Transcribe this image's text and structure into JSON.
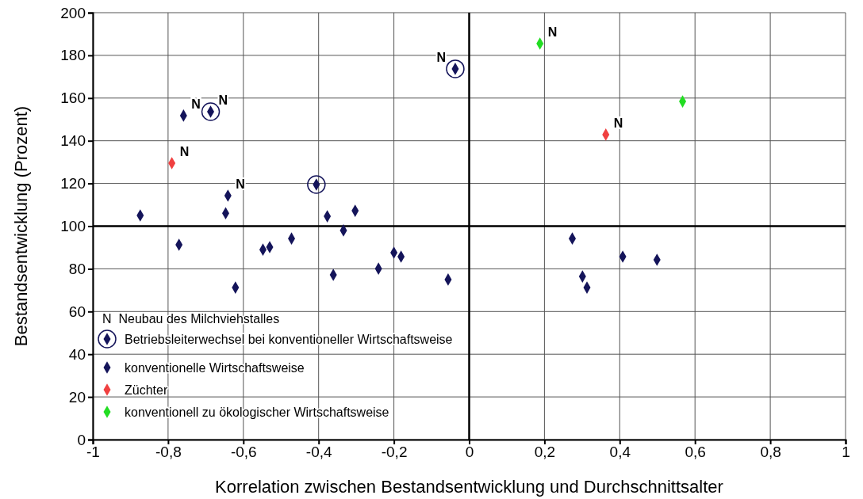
{
  "chart_data": {
    "type": "scatter",
    "xlabel": "Korrelation zwischen Bestandsentwicklung und Durchschnittsalter",
    "ylabel": "Bestandsentwicklung (Prozent)",
    "xlim": [
      -1,
      1
    ],
    "ylim": [
      0,
      200
    ],
    "xticks": [
      {
        "value": -1,
        "label": "-1"
      },
      {
        "value": -0.8,
        "label": "-0,8"
      },
      {
        "value": -0.6,
        "label": "-0,6"
      },
      {
        "value": -0.4,
        "label": "-0,4"
      },
      {
        "value": -0.2,
        "label": "-0,2"
      },
      {
        "value": 0,
        "label": "0"
      },
      {
        "value": 0.2,
        "label": "0,2"
      },
      {
        "value": 0.4,
        "label": "0,4"
      },
      {
        "value": 0.6,
        "label": "0,6"
      },
      {
        "value": 0.8,
        "label": "0,8"
      },
      {
        "value": 1,
        "label": "1"
      }
    ],
    "yticks": [
      0,
      20,
      40,
      60,
      80,
      100,
      120,
      140,
      160,
      180,
      200
    ],
    "grid": true,
    "legend": "bottom left",
    "marker": "diamond",
    "ref_lines": [
      {
        "axis": "x",
        "value": 0,
        "color": "#000000"
      },
      {
        "axis": "y",
        "value": 100,
        "color": "#000000"
      }
    ],
    "series": [
      {
        "name": "Betriebsleiterwechsel bei konventioneller Wirtschaftsweise",
        "color": "#14145a",
        "marker": "circle",
        "x": [
          -0.687,
          -0.406,
          -0.037
        ],
        "values": [
          153.6,
          119.5,
          173.7
        ]
      },
      {
        "name": "konventionelle Wirtschaftsweise",
        "color": "#14145a",
        "x": [
          -0.874,
          -0.759,
          -0.771,
          -0.641,
          -0.647,
          -0.621,
          -0.548,
          -0.53,
          -0.472,
          -0.377,
          -0.361,
          -0.334,
          -0.303,
          -0.241,
          -0.2,
          -0.181,
          -0.056,
          0.274,
          0.301,
          0.313,
          0.408,
          0.499
        ],
        "values": [
          105,
          151.8,
          91.3,
          114.3,
          106,
          71.2,
          89,
          90.2,
          94.2,
          104.6,
          77.2,
          98,
          107.2,
          80.1,
          87.6,
          85.7,
          75,
          94.2,
          76.4,
          71.2,
          85.7,
          84.2
        ]
      },
      {
        "name": "Züchter",
        "color": "#f04040",
        "x": [
          -0.79,
          0.363
        ],
        "values": [
          129.5,
          142.9
        ]
      },
      {
        "name": "konventionell zu ökologischer Wirtschaftsweise",
        "color": "#22dd22",
        "x": [
          0.188,
          0.567
        ],
        "values": [
          185.5,
          158.4
        ]
      }
    ],
    "annotations": [
      {
        "text": "N",
        "x": -0.759,
        "y": 151.8
      },
      {
        "text": "N",
        "x": -0.687,
        "y": 153.6
      },
      {
        "text": "N",
        "x": -0.79,
        "y": 129.5
      },
      {
        "text": "N",
        "x": -0.641,
        "y": 114.3
      },
      {
        "text": "N",
        "x": -0.037,
        "y": 173.7
      },
      {
        "text": "N",
        "x": 0.188,
        "y": 185.5
      },
      {
        "text": "N",
        "x": 0.363,
        "y": 142.9
      },
      "N  Neubau des Milchviehstalles"
    ]
  }
}
